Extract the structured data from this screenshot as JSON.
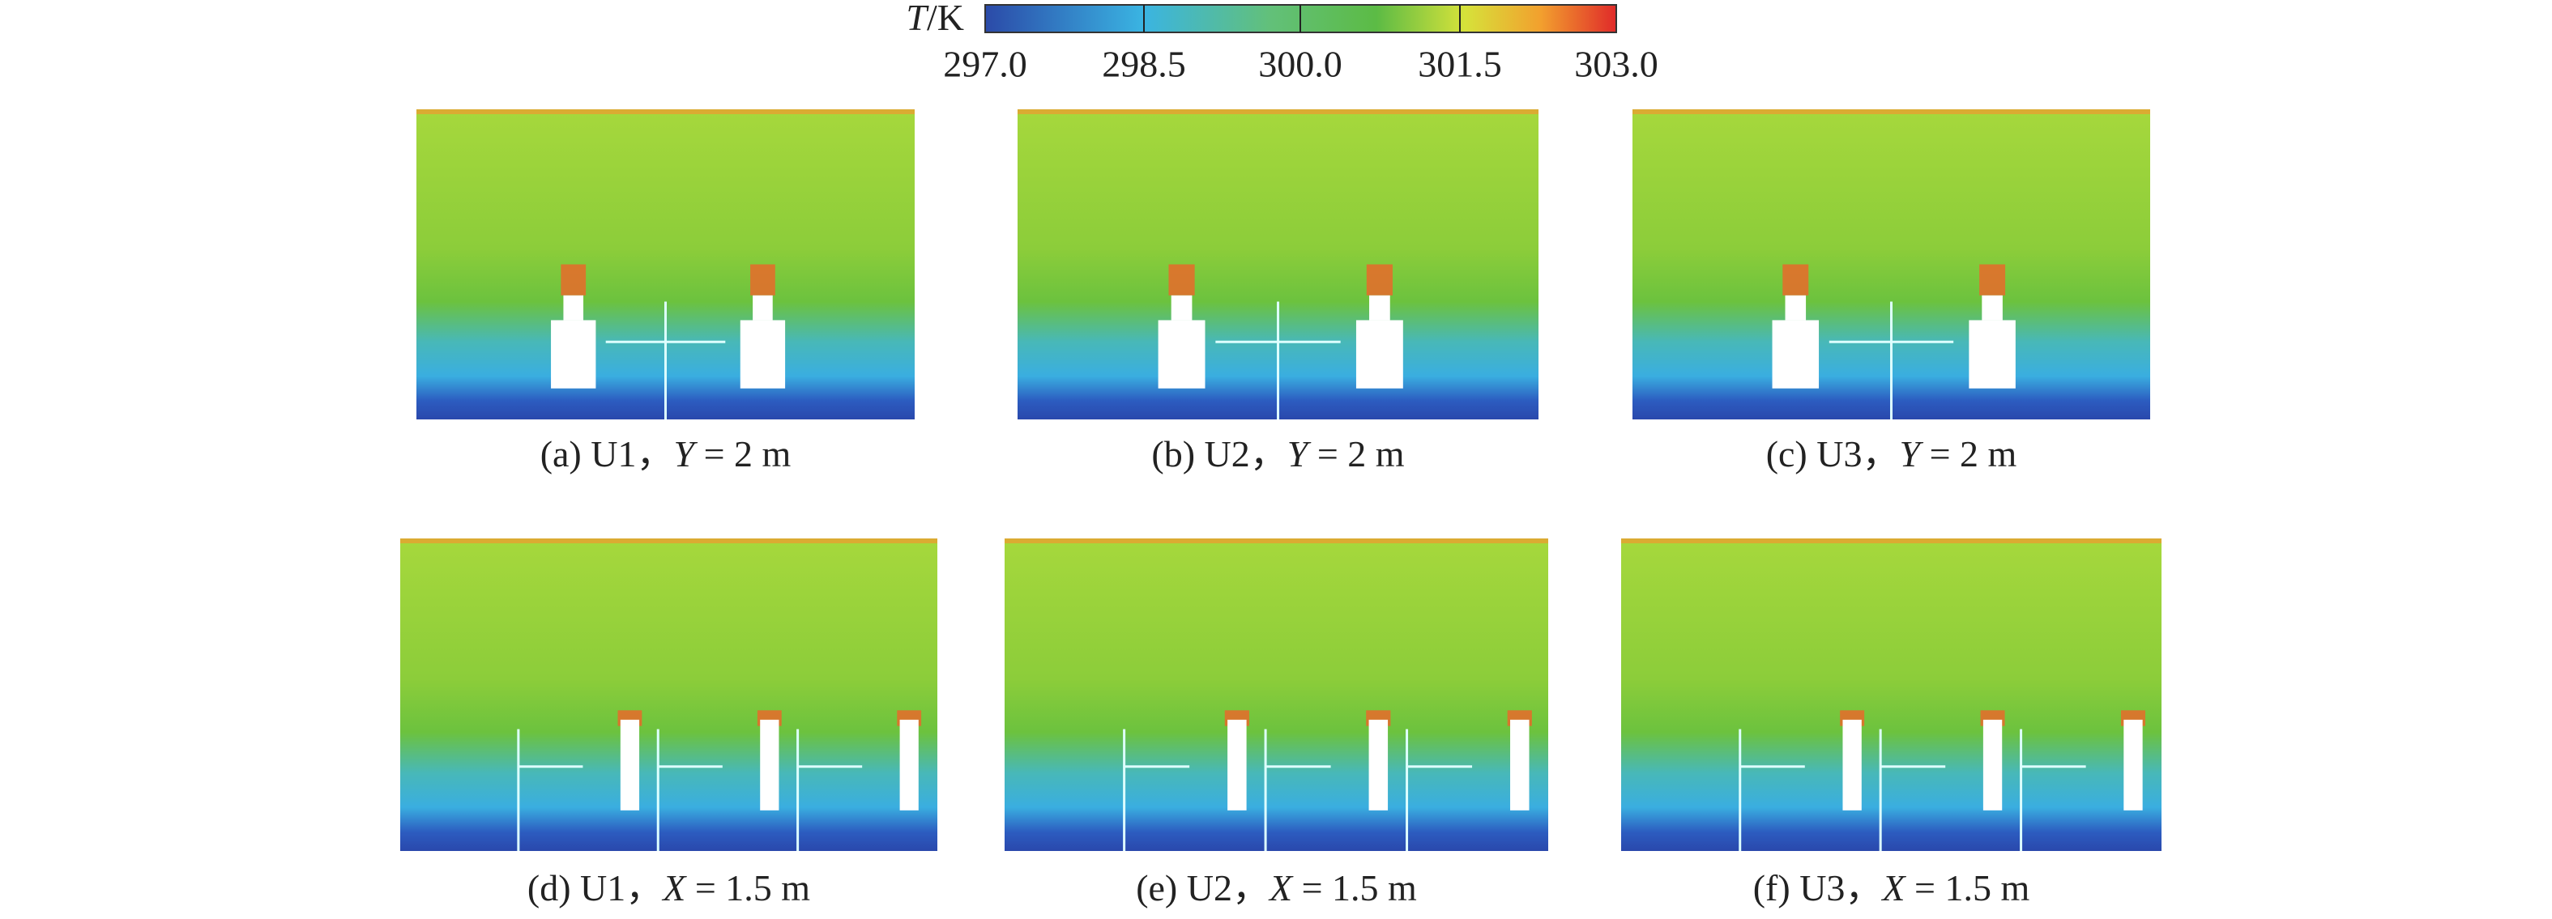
{
  "colorbar": {
    "label_var": "T",
    "label_unit": "/K",
    "ticks": [
      "297.0",
      "298.5",
      "300.0",
      "301.5",
      "303.0"
    ]
  },
  "panels": [
    {
      "prefix": "(a) U1，",
      "var": "Y",
      "rest": " = 2 m"
    },
    {
      "prefix": "(b) U2，",
      "var": "Y",
      "rest": " = 2 m"
    },
    {
      "prefix": "(c) U3，",
      "var": "Y",
      "rest": " = 2 m"
    },
    {
      "prefix": "(d) U1，",
      "var": "X",
      "rest": " = 1.5 m"
    },
    {
      "prefix": "(e) U2，",
      "var": "X",
      "rest": " = 1.5 m"
    },
    {
      "prefix": "(f) U3，",
      "var": "X",
      "rest": " = 1.5 m"
    }
  ]
}
